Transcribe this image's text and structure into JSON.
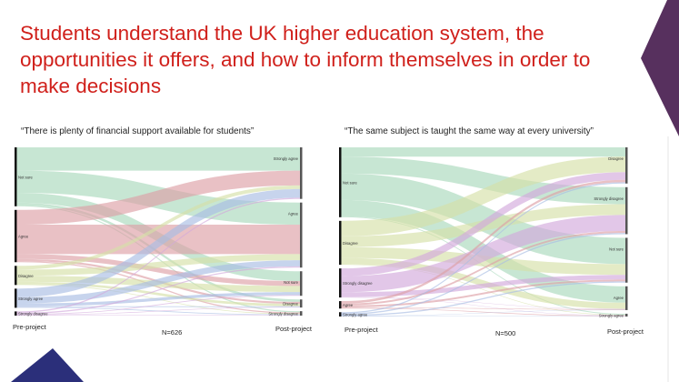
{
  "title": "Students understand the UK higher education system, the opportunities it offers, and how to inform themselves in order to make decisions",
  "colors": {
    "title": "#d0201b",
    "accent_purple": "#57305e",
    "accent_navy": "#2b2f7a"
  },
  "chart_data": [
    {
      "type": "sankey",
      "title": "“There is plenty of financial support available for students”",
      "left_label": "Pre-project",
      "right_label": "Post-project",
      "n_label": "N=626",
      "left_nodes": [
        "Not sure",
        "Agree",
        "Disagree",
        "Strongly agree",
        "Strongly disagree"
      ],
      "right_nodes": [
        "Strongly agree",
        "Agree",
        "Not sure",
        "Disagree",
        "Strongly disagree"
      ],
      "flows_note_rows_are_right_nodes_cols_are_left_nodes": "",
      "flows": [
        [
          95,
          60,
          15,
          35,
          5
        ],
        [
          90,
          120,
          25,
          25,
          5
        ],
        [
          40,
          20,
          25,
          12,
          3
        ],
        [
          10,
          8,
          10,
          3,
          2
        ],
        [
          5,
          5,
          3,
          3,
          2
        ]
      ],
      "node_colors": {
        "Not sure": "#a9d9bb",
        "Agree": "#dda0a6",
        "Disagree": "#d6e0a8",
        "Strongly agree": "#a9bde3",
        "Strongly disagree": "#d3a9dc"
      }
    },
    {
      "type": "sankey",
      "title": "“The same subject is taught the same way at every university”",
      "left_label": "Pre-project",
      "right_label": "Post-project",
      "n_label": "N=500",
      "left_nodes": [
        "Not sure",
        "Disagree",
        "Strongly disagree",
        "Agree",
        "Strongly agree"
      ],
      "right_nodes": [
        "Disagree",
        "Strongly disagree",
        "Not sure",
        "Agree",
        "Strongly agree"
      ],
      "flows": [
        [
          30,
          50,
          25,
          8,
          4
        ],
        [
          55,
          35,
          52,
          6,
          4
        ],
        [
          85,
          35,
          15,
          6,
          4
        ],
        [
          53,
          20,
          1,
          2,
          1
        ],
        [
          3,
          2,
          1,
          2,
          1
        ]
      ],
      "node_colors": {
        "Not sure": "#a9d9bb",
        "Agree": "#dda0a6",
        "Disagree": "#d6e0a8",
        "Strongly agree": "#a9bde3",
        "Strongly disagree": "#d3a9dc"
      }
    }
  ]
}
